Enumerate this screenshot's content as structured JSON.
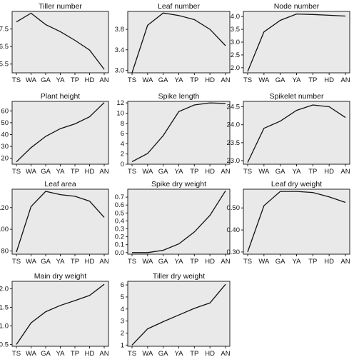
{
  "figure": {
    "panel_background": "#e9e9e9",
    "line_color": "#111111",
    "axis_color": "#222222"
  },
  "chart_data": [
    {
      "type": "line",
      "title": "Tiller number",
      "categories": [
        "TS",
        "WA",
        "GA",
        "YA",
        "TP",
        "HD",
        "AN"
      ],
      "series": [
        {
          "values": [
            7.9,
            8.4,
            7.75,
            7.35,
            6.85,
            6.3,
            5.2
          ]
        }
      ],
      "ylim": [
        5.0,
        8.5
      ],
      "yticks": [
        5.5,
        6.5,
        7.5
      ],
      "ytick_labels": [
        "5.5",
        "6.5",
        "7.5"
      ],
      "grid": false
    },
    {
      "type": "line",
      "title": "Leaf number",
      "categories": [
        "TS",
        "WA",
        "GA",
        "YA",
        "TP",
        "HD",
        "AN"
      ],
      "series": [
        {
          "values": [
            2.95,
            3.88,
            4.12,
            4.07,
            3.99,
            3.8,
            3.48
          ]
        }
      ],
      "ylim": [
        2.95,
        4.15
      ],
      "yticks": [
        3.0,
        3.4,
        3.8
      ],
      "ytick_labels": [
        "3.0",
        "3.4",
        "3.8"
      ],
      "grid": false
    },
    {
      "type": "line",
      "title": "Node number",
      "categories": [
        "TS",
        "WA",
        "GA",
        "YA",
        "TP",
        "HD",
        "AN"
      ],
      "series": [
        {
          "values": [
            1.85,
            3.4,
            3.85,
            4.1,
            4.08,
            4.05,
            4.02
          ]
        }
      ],
      "ylim": [
        1.8,
        4.2
      ],
      "yticks": [
        2.0,
        2.5,
        3.0,
        3.5,
        4.0
      ],
      "ytick_labels": [
        "2.0",
        "2.5",
        "3.0",
        "3.5",
        "4.0"
      ],
      "grid": false
    },
    {
      "type": "line",
      "title": "Plant height",
      "categories": [
        "TS",
        "WA",
        "GA",
        "YA",
        "TP",
        "HD",
        "AN"
      ],
      "series": [
        {
          "values": [
            17,
            29,
            38.5,
            45,
            49,
            55,
            67
          ]
        }
      ],
      "ylim": [
        15,
        68
      ],
      "yticks": [
        20,
        30,
        40,
        50,
        60
      ],
      "ytick_labels": [
        "20",
        "30",
        "40",
        "50",
        "60"
      ],
      "grid": false
    },
    {
      "type": "line",
      "title": "Spike length",
      "categories": [
        "TS",
        "WA",
        "GA",
        "YA",
        "TP",
        "HD",
        "AN"
      ],
      "series": [
        {
          "values": [
            0.5,
            2.1,
            5.6,
            10.3,
            11.6,
            12.0,
            11.9
          ]
        }
      ],
      "ylim": [
        0,
        12.3
      ],
      "yticks": [
        0,
        2,
        4,
        6,
        8,
        10,
        12
      ],
      "ytick_labels": [
        "0",
        "2",
        "4",
        "6",
        "8",
        "10",
        "12"
      ],
      "grid": false
    },
    {
      "type": "line",
      "title": "Spikelet number",
      "categories": [
        "TS",
        "WA",
        "GA",
        "YA",
        "TP",
        "HD",
        "AN"
      ],
      "series": [
        {
          "values": [
            22.95,
            23.9,
            24.1,
            24.4,
            24.55,
            24.5,
            24.2
          ]
        }
      ],
      "ylim": [
        22.9,
        24.65
      ],
      "yticks": [
        23.0,
        23.5,
        24.0,
        24.5
      ],
      "ytick_labels": [
        "23.0",
        "23.5",
        "24.0",
        "24.5"
      ],
      "grid": false
    },
    {
      "type": "line",
      "title": "Leaf area",
      "categories": [
        "TS",
        "WA",
        "GA",
        "YA",
        "TP",
        "HD",
        "AN"
      ],
      "series": [
        {
          "values": [
            79,
            121,
            135,
            132,
            130.5,
            126,
            111
          ]
        }
      ],
      "ylim": [
        77,
        137
      ],
      "yticks": [
        80,
        100,
        120
      ],
      "ytick_labels": [
        "80",
        "100",
        "120"
      ],
      "grid": false
    },
    {
      "type": "line",
      "title": "Spike dry weight",
      "categories": [
        "TS",
        "WA",
        "GA",
        "YA",
        "TP",
        "HD",
        "AN"
      ],
      "series": [
        {
          "values": [
            0.0,
            0.0,
            0.03,
            0.11,
            0.26,
            0.47,
            0.78
          ]
        }
      ],
      "ylim": [
        -0.02,
        0.8
      ],
      "yticks": [
        0.0,
        0.1,
        0.2,
        0.3,
        0.4,
        0.5,
        0.6,
        0.7
      ],
      "ytick_labels": [
        "0.0",
        "0.1",
        "0.2",
        "0.3",
        "0.4",
        "0.5",
        "0.6",
        "0.7"
      ],
      "grid": false
    },
    {
      "type": "line",
      "title": "Leaf dry weight",
      "categories": [
        "TS",
        "WA",
        "GA",
        "YA",
        "TP",
        "HD",
        "AN"
      ],
      "series": [
        {
          "values": [
            0.3,
            0.51,
            0.575,
            0.575,
            0.57,
            0.55,
            0.525
          ]
        }
      ],
      "ylim": [
        0.29,
        0.585
      ],
      "yticks": [
        0.3,
        0.4,
        0.5
      ],
      "ytick_labels": [
        "0.30",
        "0.40",
        "0.50"
      ],
      "grid": false
    },
    {
      "type": "line",
      "title": "Main dry weight",
      "categories": [
        "TS",
        "WA",
        "GA",
        "YA",
        "TP",
        "HD",
        "AN"
      ],
      "series": [
        {
          "values": [
            0.5,
            1.08,
            1.38,
            1.55,
            1.68,
            1.82,
            2.12
          ]
        }
      ],
      "ylim": [
        0.45,
        2.2
      ],
      "yticks": [
        0.5,
        1.0,
        1.5,
        2.0
      ],
      "ytick_labels": [
        "0.5",
        "1.0",
        "1.5",
        "2.0"
      ],
      "grid": false
    },
    {
      "type": "line",
      "title": "Tiller dry weight",
      "categories": [
        "TS",
        "WA",
        "GA",
        "YA",
        "TP",
        "HD",
        "AN"
      ],
      "series": [
        {
          "values": [
            1.0,
            2.35,
            2.95,
            3.5,
            4.05,
            4.5,
            6.05
          ]
        }
      ],
      "ylim": [
        0.9,
        6.3
      ],
      "yticks": [
        1,
        2,
        3,
        4,
        5,
        6
      ],
      "ytick_labels": [
        "1",
        "2",
        "3",
        "4",
        "5",
        "6"
      ],
      "grid": false
    }
  ]
}
